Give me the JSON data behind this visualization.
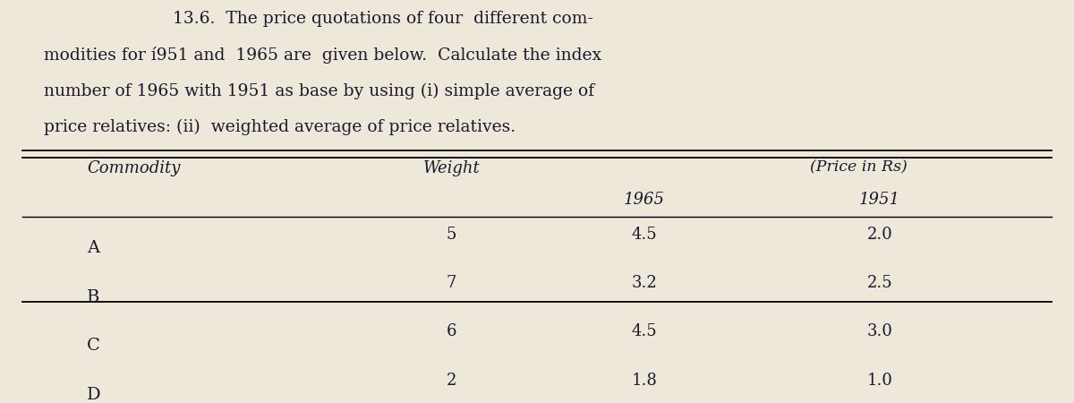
{
  "title_line1": "13.6.  The price quotations of four  different com-",
  "title_line2": "modities for í951 and  1965 are  given below.  Calculate the index",
  "title_line3": "number of 1965 with 1951 as base by using (i) simple average of",
  "title_line4": "price relatives: (ii)  weighted average of price relatives.",
  "price_label": "(Price in Rs)",
  "commodities": [
    "A",
    "B",
    "C",
    "D"
  ],
  "weights": [
    5,
    7,
    6,
    2
  ],
  "price_1965": [
    4.5,
    3.2,
    4.5,
    1.8
  ],
  "price_1951": [
    2.0,
    2.5,
    3.0,
    1.0
  ],
  "bg_color": "#ede8da",
  "text_color": "#1a1a2e",
  "font_size_title": 13.5,
  "font_size_table": 13,
  "fig_width": 12,
  "fig_height": 4.5
}
